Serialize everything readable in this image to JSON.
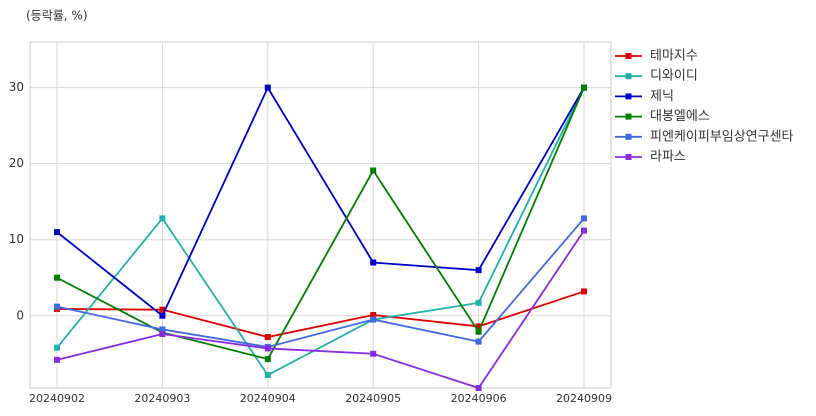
{
  "chart_data": {
    "type": "line",
    "y_label": "(등락률, %)",
    "categories": [
      "20240902",
      "20240903",
      "20240904",
      "20240905",
      "20240906",
      "20240909"
    ],
    "series": [
      {
        "name": "테마지수",
        "color": "#e00000",
        "values": [
          0.9,
          0.8,
          -2.8,
          0.1,
          -1.4,
          3.2
        ]
      },
      {
        "name": "디와이디",
        "color": "#20b2aa",
        "values": [
          -4.2,
          12.8,
          -7.8,
          -0.5,
          1.7,
          30
        ]
      },
      {
        "name": "제닉",
        "color": "#0000cd",
        "values": [
          11,
          0,
          30,
          7,
          6,
          30
        ]
      },
      {
        "name": "대봉엘에스",
        "color": "#008000",
        "values": [
          5,
          -2.2,
          -5.7,
          19.1,
          -2.1,
          30
        ]
      },
      {
        "name": "피엔케이피부임상연구센타",
        "color": "#4169e1",
        "values": [
          1.2,
          -1.8,
          -4.1,
          -0.5,
          -3.4,
          12.8
        ]
      },
      {
        "name": "라파스",
        "color": "#8a2be2",
        "values": [
          -5.8,
          -2.4,
          -4.3,
          -5,
          -9.5,
          11.2
        ]
      }
    ],
    "ylim": [
      -9.5,
      36
    ],
    "yticks": [
      0,
      10,
      20,
      30
    ],
    "grid": true,
    "legend": "right"
  }
}
